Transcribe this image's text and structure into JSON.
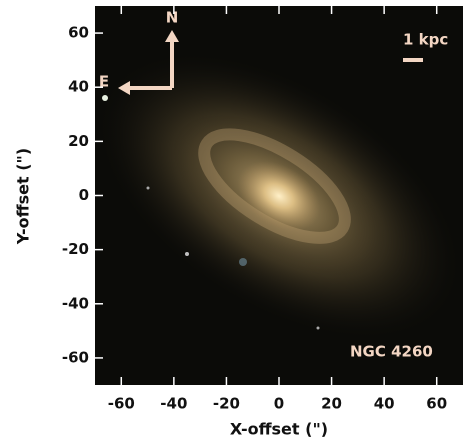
{
  "chart_data": {
    "type": "image",
    "xlabel": "X-offset (\")",
    "ylabel": "Y-offset (\")",
    "xlim": [
      -70,
      70
    ],
    "ylim": [
      -70,
      70
    ],
    "xticks": [
      -60,
      -40,
      -20,
      0,
      20,
      40,
      60
    ],
    "yticks": [
      -60,
      -40,
      -20,
      0,
      20,
      40,
      60
    ],
    "annotations": {
      "object": "NGC 4260",
      "scale_bar": "1 kpc",
      "north": "N",
      "east": "E"
    }
  }
}
